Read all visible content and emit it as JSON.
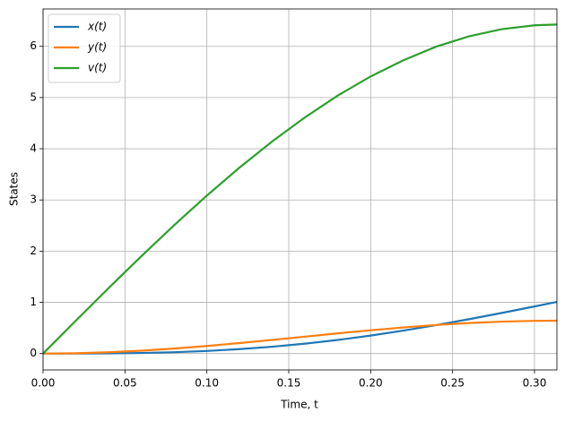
{
  "chart_data": {
    "type": "line",
    "x": [
      0,
      0.02,
      0.04,
      0.06,
      0.08,
      0.1,
      0.12,
      0.14,
      0.16,
      0.18,
      0.2,
      0.22,
      0.24,
      0.26,
      0.28,
      0.3,
      0.3137
    ],
    "series": [
      {
        "name": "x(t)",
        "color": "#1f77b4",
        "values": [
          0,
          0.0004,
          0.0034,
          0.0114,
          0.0266,
          0.0511,
          0.0863,
          0.1335,
          0.1934,
          0.266,
          0.3513,
          0.4481,
          0.5553,
          0.6709,
          0.793,
          0.9199,
          1.008
        ]
      },
      {
        "name": "y(t)",
        "color": "#ff7f0e",
        "values": [
          0,
          0.0064,
          0.0254,
          0.0562,
          0.0976,
          0.1479,
          0.2051,
          0.2671,
          0.331,
          0.3947,
          0.4552,
          0.5101,
          0.5582,
          0.5963,
          0.6236,
          0.6388,
          0.6417
        ]
      },
      {
        "name": "v(t)",
        "color": "#2ca02c",
        "values": [
          0,
          0.642,
          1.279,
          1.901,
          2.506,
          3.085,
          3.633,
          4.145,
          4.615,
          5.04,
          5.412,
          5.729,
          5.994,
          6.195,
          6.335,
          6.411,
          6.426
        ]
      }
    ],
    "xlabel": "Time, t",
    "ylabel": "States",
    "xlim": [
      0,
      0.3137
    ],
    "ylim": [
      -0.32,
      6.73
    ],
    "xticks": [
      {
        "value": 0,
        "label": "0.00"
      },
      {
        "value": 0.05,
        "label": "0.05"
      },
      {
        "value": 0.1,
        "label": "0.10"
      },
      {
        "value": 0.15,
        "label": "0.15"
      },
      {
        "value": 0.2,
        "label": "0.20"
      },
      {
        "value": 0.25,
        "label": "0.25"
      },
      {
        "value": 0.3,
        "label": "0.30"
      }
    ],
    "yticks": [
      0,
      1,
      2,
      3,
      4,
      5,
      6
    ],
    "grid": true,
    "legend": "upper left"
  }
}
